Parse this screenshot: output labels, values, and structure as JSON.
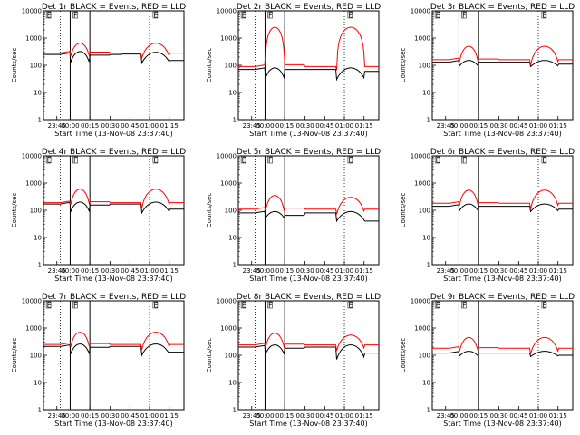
{
  "chart_data": [
    {
      "type": "line",
      "title": "Det 1r BLACK = Events, RED = LLD",
      "xlabel": "Start Time (13-Nov-08 23:37:40)",
      "ylabel": "Counts/sec",
      "x_ticks": [
        "23:45",
        "00:00",
        "00:15",
        "00:30",
        "00:45",
        "01:00",
        "01:15"
      ],
      "y_ticks": [
        "1",
        "10",
        "100",
        "1000",
        "10000"
      ],
      "flag_labels": [
        "E",
        "F",
        "E"
      ],
      "series": [
        {
          "color": "#000000",
          "levels": [
            250,
            250,
            110,
            320,
            150,
            320,
            250,
            260,
            120,
            300,
            150
          ]
        },
        {
          "color": "#ff0000",
          "levels": [
            280,
            280,
            650,
            320,
            280,
            330,
            280,
            280,
            650,
            330,
            280
          ]
        }
      ]
    },
    {
      "type": "line",
      "title": "Det 2r BLACK = Events, RED = LLD",
      "xlabel": "Start Time (13-Nov-08 23:37:40)",
      "ylabel": "Counts/sec",
      "x_ticks": [
        "23:45",
        "00:00",
        "00:15",
        "00:30",
        "00:45",
        "01:00",
        "01:15"
      ],
      "y_ticks": [
        "1",
        "10",
        "100",
        "1000",
        "10000"
      ],
      "flag_labels": [
        "E",
        "F",
        "E"
      ],
      "series": [
        {
          "color": "#000000",
          "levels": [
            70,
            70,
            30,
            80,
            60,
            80,
            70,
            70,
            30,
            80,
            60
          ]
        },
        {
          "color": "#ff0000",
          "levels": [
            90,
            90,
            2500,
            120,
            90,
            120,
            90,
            90,
            2500,
            120,
            90
          ]
        }
      ]
    },
    {
      "type": "line",
      "title": "Det 3r BLACK = Events, RED = LLD",
      "xlabel": "Start Time (13-Nov-08 23:37:40)",
      "ylabel": "Counts/sec",
      "x_ticks": [
        "23:45",
        "00:00",
        "00:15",
        "00:30",
        "00:45",
        "01:00",
        "01:15"
      ],
      "y_ticks": [
        "1",
        "10",
        "100",
        "1000",
        "10000"
      ],
      "flag_labels": [
        "E",
        "F",
        "E"
      ],
      "series": [
        {
          "color": "#000000",
          "levels": [
            130,
            130,
            90,
            150,
            110,
            150,
            130,
            130,
            90,
            150,
            110
          ]
        },
        {
          "color": "#ff0000",
          "levels": [
            160,
            160,
            500,
            180,
            160,
            180,
            160,
            160,
            500,
            180,
            160
          ]
        }
      ]
    },
    {
      "type": "line",
      "title": "Det 4r BLACK = Events, RED = LLD",
      "xlabel": "Start Time (13-Nov-08 23:37:40)",
      "ylabel": "Counts/sec",
      "x_ticks": [
        "23:45",
        "00:00",
        "00:15",
        "00:30",
        "00:45",
        "01:00",
        "01:15"
      ],
      "y_ticks": [
        "1",
        "10",
        "100",
        "1000",
        "10000"
      ],
      "flag_labels": [
        "E",
        "F",
        "E"
      ],
      "series": [
        {
          "color": "#000000",
          "levels": [
            170,
            170,
            80,
            200,
            110,
            200,
            170,
            170,
            80,
            200,
            110
          ]
        },
        {
          "color": "#ff0000",
          "levels": [
            190,
            190,
            600,
            220,
            190,
            220,
            190,
            190,
            600,
            220,
            190
          ]
        }
      ]
    },
    {
      "type": "line",
      "title": "Det 5r BLACK = Events, RED = LLD",
      "xlabel": "Start Time (13-Nov-08 23:37:40)",
      "ylabel": "Counts/sec",
      "x_ticks": [
        "23:45",
        "00:00",
        "00:15",
        "00:30",
        "00:45",
        "01:00",
        "01:15"
      ],
      "y_ticks": [
        "1",
        "10",
        "100",
        "1000",
        "10000"
      ],
      "flag_labels": [
        "E",
        "F",
        "E"
      ],
      "series": [
        {
          "color": "#000000",
          "levels": [
            80,
            80,
            50,
            90,
            40,
            90,
            80,
            80,
            40,
            90,
            40
          ]
        },
        {
          "color": "#ff0000",
          "levels": [
            110,
            110,
            350,
            130,
            110,
            130,
            110,
            110,
            300,
            130,
            110
          ]
        }
      ]
    },
    {
      "type": "line",
      "title": "Det 6r BLACK = Events, RED = LLD",
      "xlabel": "Start Time (13-Nov-08 23:37:40)",
      "ylabel": "Counts/sec",
      "x_ticks": [
        "23:45",
        "00:00",
        "00:15",
        "00:30",
        "00:45",
        "01:00",
        "01:15"
      ],
      "y_ticks": [
        "1",
        "10",
        "100",
        "1000",
        "10000"
      ],
      "flag_labels": [
        "E",
        "F",
        "E"
      ],
      "series": [
        {
          "color": "#000000",
          "levels": [
            140,
            140,
            90,
            170,
            110,
            170,
            140,
            140,
            90,
            170,
            110
          ]
        },
        {
          "color": "#ff0000",
          "levels": [
            180,
            180,
            550,
            200,
            180,
            200,
            180,
            180,
            550,
            200,
            180
          ]
        }
      ]
    },
    {
      "type": "line",
      "title": "Det 7r BLACK = Events, RED = LLD",
      "xlabel": "Start Time (13-Nov-08 23:37:40)",
      "ylabel": "Counts/sec",
      "x_ticks": [
        "23:45",
        "00:00",
        "00:15",
        "00:30",
        "00:45",
        "01:00",
        "01:15"
      ],
      "y_ticks": [
        "1",
        "10",
        "100",
        "1000",
        "10000"
      ],
      "flag_labels": [
        "E",
        "F",
        "E"
      ],
      "series": [
        {
          "color": "#000000",
          "levels": [
            210,
            210,
            100,
            260,
            130,
            260,
            210,
            210,
            100,
            260,
            130
          ]
        },
        {
          "color": "#ff0000",
          "levels": [
            250,
            250,
            700,
            290,
            250,
            290,
            250,
            250,
            700,
            290,
            250
          ]
        }
      ]
    },
    {
      "type": "line",
      "title": "Det 8r BLACK = Events, RED = LLD",
      "xlabel": "Start Time (13-Nov-08 23:37:40)",
      "ylabel": "Counts/sec",
      "x_ticks": [
        "23:45",
        "00:00",
        "00:15",
        "00:30",
        "00:45",
        "01:00",
        "01:15"
      ],
      "y_ticks": [
        "1",
        "10",
        "100",
        "1000",
        "10000"
      ],
      "flag_labels": [
        "E",
        "F",
        "E"
      ],
      "series": [
        {
          "color": "#000000",
          "levels": [
            200,
            200,
            100,
            240,
            120,
            240,
            200,
            200,
            70,
            240,
            120
          ]
        },
        {
          "color": "#ff0000",
          "levels": [
            240,
            240,
            650,
            270,
            240,
            270,
            240,
            240,
            550,
            270,
            240
          ]
        }
      ]
    },
    {
      "type": "line",
      "title": "Det 9r BLACK = Events, RED = LLD",
      "xlabel": "Start Time (13-Nov-08 23:37:40)",
      "ylabel": "Counts/sec",
      "x_ticks": [
        "23:45",
        "00:00",
        "00:15",
        "00:30",
        "00:45",
        "01:00",
        "01:15"
      ],
      "y_ticks": [
        "1",
        "10",
        "100",
        "1000",
        "10000"
      ],
      "flag_labels": [
        "E",
        "F",
        "E"
      ],
      "series": [
        {
          "color": "#000000",
          "levels": [
            120,
            120,
            90,
            140,
            100,
            140,
            120,
            120,
            90,
            140,
            100
          ]
        },
        {
          "color": "#ff0000",
          "levels": [
            180,
            180,
            450,
            200,
            180,
            200,
            180,
            180,
            450,
            200,
            180
          ]
        }
      ]
    }
  ]
}
